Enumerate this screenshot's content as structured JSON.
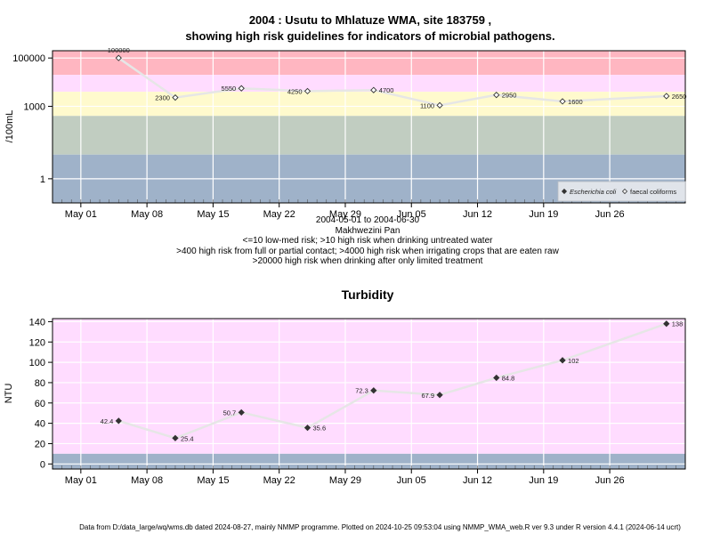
{
  "footer": "Data from D:/data_large/wq/wms.db dated 2024-08-27, mainly NMMP programme. Plotted on 2024-10-25 09:53:04 using NMMP_WMA_web.R ver 9.3 under R version 4.4.1 (2024-06-14 ucrt)",
  "colors": {
    "red_band": "#ffb6c1",
    "pink_band": "#ffdcff",
    "yellow_band": "#fffacd",
    "green_band": "#c1cdc1",
    "blue_band": "#9fb2c9",
    "grid": "#ffffff",
    "trend_line": "#e6e6e6",
    "marker": "#333333"
  },
  "chart_data": [
    {
      "type": "scatter",
      "title_line1": "2004 : Usutu to Mhlatuze WMA, site 183759 ,",
      "title_line2": "showing high risk guidelines for indicators of microbial pathogens.",
      "ylabel": "/100mL",
      "y_scale": "log",
      "ylim": [
        0.1,
        200000
      ],
      "y_ticks": [
        {
          "value": 1,
          "label": "1"
        },
        {
          "value": 1000,
          "label": "1000"
        },
        {
          "value": 100000,
          "label": "100000"
        }
      ],
      "xlim": [
        "2004-04-28",
        "2004-07-04"
      ],
      "x_ticks": [
        {
          "date": "2004-05-01",
          "label": "May 01"
        },
        {
          "date": "2004-05-08",
          "label": "May 08"
        },
        {
          "date": "2004-05-15",
          "label": "May 15"
        },
        {
          "date": "2004-05-22",
          "label": "May 22"
        },
        {
          "date": "2004-05-29",
          "label": "May 29"
        },
        {
          "date": "2004-06-05",
          "label": "Jun 05"
        },
        {
          "date": "2004-06-12",
          "label": "Jun 12"
        },
        {
          "date": "2004-06-19",
          "label": "Jun 19"
        },
        {
          "date": "2004-06-26",
          "label": "Jun 26"
        }
      ],
      "risk_bands": [
        {
          "from": 20000,
          "to": 200000,
          "color": "#ffb6c1"
        },
        {
          "from": 4000,
          "to": 20000,
          "color": "#ffdcff"
        },
        {
          "from": 400,
          "to": 4000,
          "color": "#fffacd"
        },
        {
          "from": 10,
          "to": 400,
          "color": "#c1cdc1"
        },
        {
          "from": 0.1,
          "to": 10,
          "color": "#9fb2c9"
        }
      ],
      "legend": [
        {
          "name": "Escherichia coli",
          "marker": "filled-diamond",
          "italic": true
        },
        {
          "name": "faecal coliforms",
          "marker": "open-diamond",
          "italic": false
        }
      ],
      "legend_position": "bottom-right",
      "series": [
        {
          "name": "faecal coliforms",
          "marker": "open-diamond",
          "points": [
            {
              "x": "2004-05-05",
              "y": 100000,
              "label": "100000",
              "label_pos": "above"
            },
            {
              "x": "2004-05-11",
              "y": 2300,
              "label": "2300",
              "label_pos": "left"
            },
            {
              "x": "2004-05-18",
              "y": 5550,
              "label": "5550",
              "label_pos": "left"
            },
            {
              "x": "2004-05-25",
              "y": 4250,
              "label": "4250",
              "label_pos": "left"
            },
            {
              "x": "2004-06-01",
              "y": 4700,
              "label": "4700",
              "label_pos": "right"
            },
            {
              "x": "2004-06-08",
              "y": 1100,
              "label": "1100",
              "label_pos": "left"
            },
            {
              "x": "2004-06-14",
              "y": 2950,
              "label": "2950",
              "label_pos": "right"
            },
            {
              "x": "2004-06-21",
              "y": 1600,
              "label": "1600",
              "label_pos": "right"
            },
            {
              "x": "2004-07-02",
              "y": 2650,
              "label": "2650",
              "label_pos": "right"
            }
          ]
        }
      ],
      "annotations": [
        "2004-05-01 to 2004-06-30",
        "Makhwezini Pan",
        "<=10 low-med risk; >10 high risk when drinking untreated water",
        ">400 high risk from full or partial contact; >4000 high risk when irrigating crops that are eaten raw",
        ">20000 high risk when drinking after only limited treatment"
      ]
    },
    {
      "type": "scatter",
      "title": "Turbidity",
      "ylabel": "NTU",
      "y_scale": "linear",
      "ylim": [
        -5,
        143
      ],
      "y_ticks": [
        0,
        20,
        40,
        60,
        80,
        100,
        120,
        140
      ],
      "xlim": [
        "2004-04-28",
        "2004-07-04"
      ],
      "x_ticks": [
        {
          "date": "2004-05-01",
          "label": "May 01"
        },
        {
          "date": "2004-05-08",
          "label": "May 08"
        },
        {
          "date": "2004-05-15",
          "label": "May 15"
        },
        {
          "date": "2004-05-22",
          "label": "May 22"
        },
        {
          "date": "2004-05-29",
          "label": "May 29"
        },
        {
          "date": "2004-06-05",
          "label": "Jun 05"
        },
        {
          "date": "2004-06-12",
          "label": "Jun 12"
        },
        {
          "date": "2004-06-19",
          "label": "Jun 19"
        },
        {
          "date": "2004-06-26",
          "label": "Jun 26"
        }
      ],
      "bands": [
        {
          "from": 10,
          "to": 143,
          "color": "#ffdcff"
        },
        {
          "from": -5,
          "to": 10,
          "color": "#9fb2c9"
        }
      ],
      "series": [
        {
          "name": "",
          "marker": "filled-diamond",
          "points": [
            {
              "x": "2004-05-05",
              "y": 42.4,
              "label": "42.4",
              "label_pos": "left"
            },
            {
              "x": "2004-05-11",
              "y": 25.4,
              "label": "25.4",
              "label_pos": "right"
            },
            {
              "x": "2004-05-18",
              "y": 50.7,
              "label": "50.7",
              "label_pos": "left"
            },
            {
              "x": "2004-05-25",
              "y": 35.6,
              "label": "35.6",
              "label_pos": "right"
            },
            {
              "x": "2004-06-01",
              "y": 72.3,
              "label": "72.3",
              "label_pos": "left"
            },
            {
              "x": "2004-06-08",
              "y": 67.9,
              "label": "67.9",
              "label_pos": "left"
            },
            {
              "x": "2004-06-14",
              "y": 84.8,
              "label": "84.8",
              "label_pos": "right"
            },
            {
              "x": "2004-06-21",
              "y": 102,
              "label": "102",
              "label_pos": "right"
            },
            {
              "x": "2004-07-02",
              "y": 138,
              "label": "138",
              "label_pos": "right"
            }
          ]
        }
      ]
    }
  ]
}
